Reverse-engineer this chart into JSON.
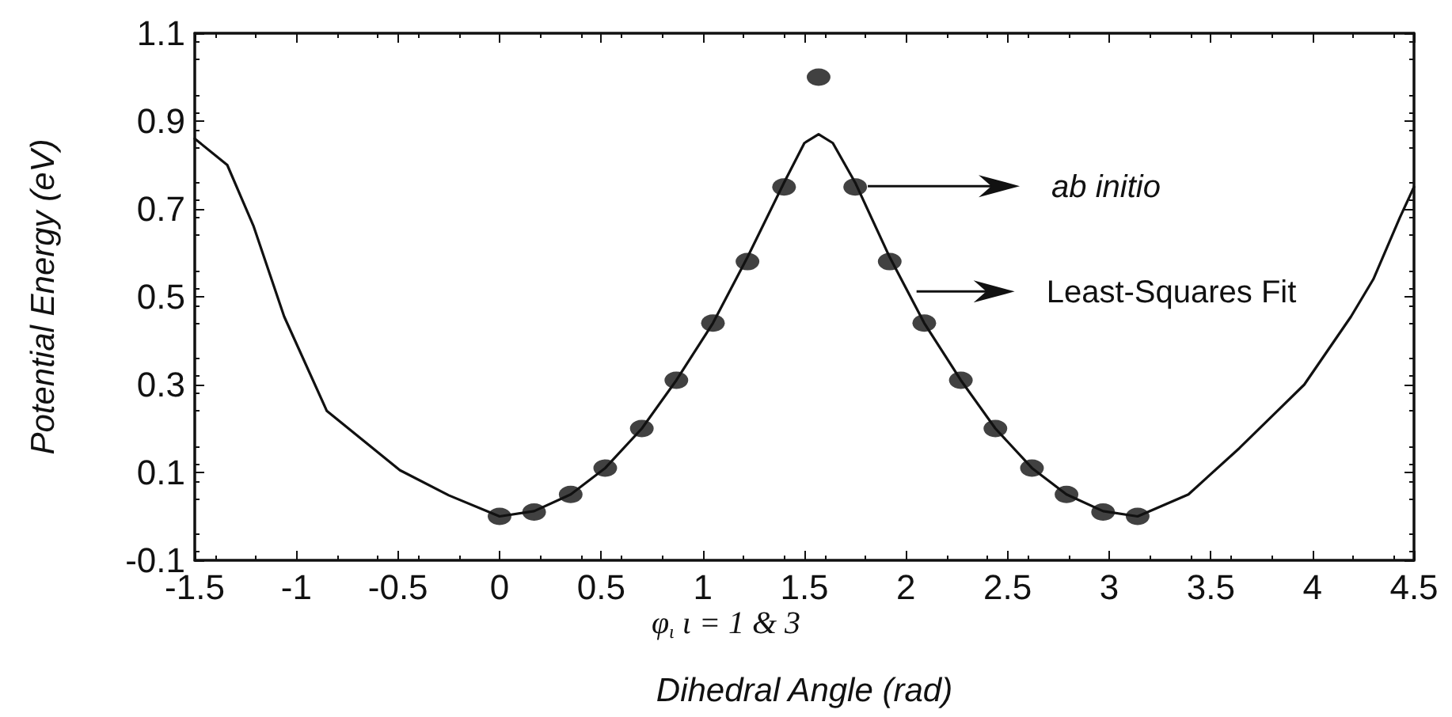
{
  "chart_data": {
    "type": "scatter",
    "xlabel": "Dihedral Angle (rad)",
    "ylabel": "Potential Energy (eV)",
    "annotations": [
      "ab initio",
      "Least-Squares Fit",
      "φ$_{ι}$ ι = 1 & 3"
    ],
    "series": [
      {
        "marker": "circle",
        "color": "#111111",
        "x": [
          0,
          0.17,
          0.35,
          0.52,
          0.7,
          0.87,
          1.05,
          1.22,
          1.4,
          1.57,
          1.75,
          1.92,
          2.09,
          2.27,
          2.44,
          2.62,
          2.79,
          2.97,
          3.14
        ],
        "values": [
          0.0,
          0.01,
          0.05,
          0.11,
          0.2,
          0.31,
          0.44,
          0.58,
          0.75,
          1.0,
          0.75,
          0.58,
          0.44,
          0.31,
          0.2,
          0.11,
          0.05,
          0.01,
          0.0
        ]
      },
      {
        "type": "line",
        "marker": "none",
        "color": "#111111",
        "x": [
          -1.5,
          -1.34,
          -1.21,
          -1.06,
          -0.85,
          -0.49,
          -0.25,
          0,
          0.17,
          0.35,
          0.52,
          0.7,
          0.87,
          1.05,
          1.22,
          1.4,
          1.5,
          1.57,
          1.64,
          1.75,
          1.92,
          2.09,
          2.27,
          2.44,
          2.62,
          2.79,
          2.97,
          3.14,
          3.39,
          3.64,
          3.96,
          4.19,
          4.3,
          4.43,
          4.5
        ],
        "values": [
          0.86,
          0.8,
          0.66,
          0.455,
          0.24,
          0.105,
          0.048,
          0.0,
          0.012,
          0.05,
          0.11,
          0.2,
          0.31,
          0.44,
          0.59,
          0.76,
          0.85,
          0.87,
          0.85,
          0.76,
          0.59,
          0.44,
          0.31,
          0.2,
          0.11,
          0.05,
          0.012,
          0.0,
          0.05,
          0.155,
          0.3,
          0.455,
          0.54,
          0.68,
          0.75
        ]
      }
    ],
    "xlim": [
      -1.5,
      4.5
    ],
    "xticks": [
      -1.5,
      -1,
      -0.5,
      0,
      0.5,
      1,
      1.5,
      2,
      2.5,
      3,
      3.5,
      4,
      4.5
    ],
    "ylim": [
      -0.1,
      1.1
    ],
    "yticks": [
      -0.1,
      0.1,
      0.3,
      0.5,
      0.7,
      0.9,
      1.1
    ],
    "grid": false,
    "line_style": "solid"
  }
}
